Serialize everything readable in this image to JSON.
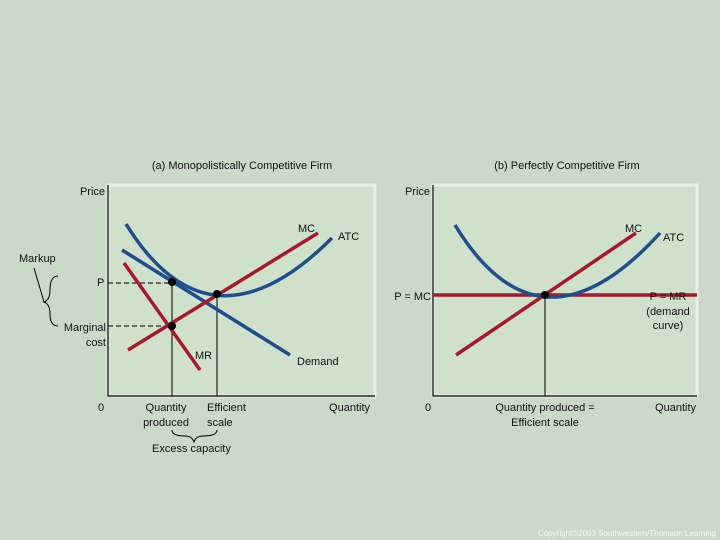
{
  "panel_a": {
    "title": "(a) Monopolistically Competitive Firm",
    "y_axis": "Price",
    "x_axis": "Quantity",
    "origin": "0",
    "mc": "MC",
    "atc": "ATC",
    "markup": "Markup",
    "p": "P",
    "marginal_cost": [
      "Marginal",
      "cost"
    ],
    "mr": "MR",
    "demand": "Demand",
    "quantity_produced": [
      "Quantity",
      "produced"
    ],
    "efficient_scale": [
      "Efficient",
      "scale"
    ],
    "excess_capacity": "Excess capacity"
  },
  "panel_b": {
    "title": "(b) Perfectly Competitive Firm",
    "y_axis": "Price",
    "x_axis": "Quantity",
    "origin": "0",
    "mc": "MC",
    "atc": "ATC",
    "p_mc": "P = MC",
    "p_mr": [
      "P = MR",
      "(demand",
      "curve)"
    ],
    "quantity_produced": [
      "Quantity produced =",
      "Efficient scale"
    ]
  },
  "footer": "Copyright©2003  Southwestern/Thomson Learning"
}
